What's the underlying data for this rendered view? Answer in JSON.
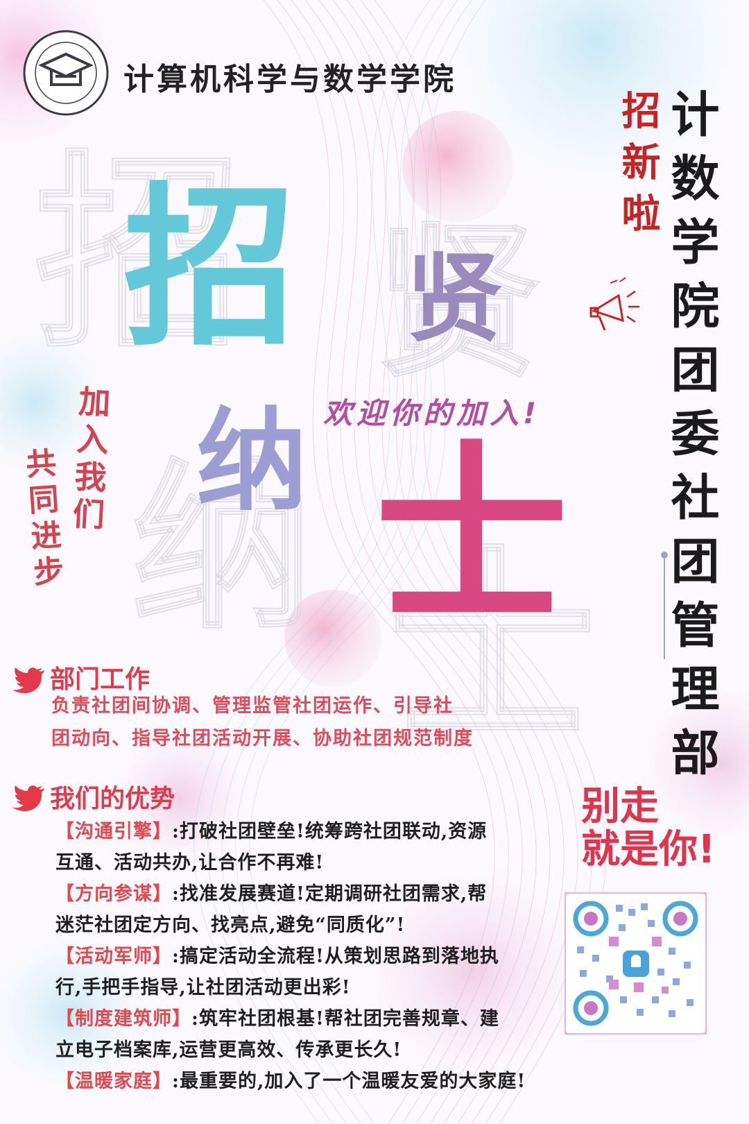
{
  "header": {
    "school_name": "计算机科学与数学学院",
    "seal_text": "计算机科学与数学学院"
  },
  "vertical_title": "计数学院团委社团管理部",
  "recruit_tag": "招新啦",
  "big_chars": {
    "zhao": "招",
    "xian": "贤",
    "na": "纳",
    "shi": "士"
  },
  "welcome": "欢迎你的加入!",
  "slogans": {
    "join": "加入我们",
    "progress": "共同进步"
  },
  "work": {
    "title": "部门工作",
    "lines": [
      "负责社团间协调、管理监管社团运作、引导社",
      "团动向、指导社团活动开展、协助社团规范制度"
    ]
  },
  "advantages": {
    "title": "我们的优势",
    "items": [
      {
        "tag": "【沟通引擎】",
        "line1": ":打破社团壁垒!统筹跨社团联动,资源",
        "line2": "互通、活动共办,让合作不再难!"
      },
      {
        "tag": "【方向参谋】",
        "line1": ":找准发展赛道!定期调研社团需求,帮",
        "line2": "迷茫社团定方向、找亮点,避免“同质化”!"
      },
      {
        "tag": "【活动军师】",
        "line1": ":搞定活动全流程!从策划思路到落地执",
        "line2": "行,手把手指导,让社团活动更出彩!"
      },
      {
        "tag": "【制度建筑师】",
        "line1": ":筑牢社团根基!帮社团完善规章、建",
        "line2": "立电子档案库,运营更高效、传承更长久!"
      },
      {
        "tag": "【温暖家庭】",
        "line1": ":最重要的,加入了一个温暖友爱的大家庭!",
        "line2": ""
      }
    ]
  },
  "callout": {
    "line1": "别走",
    "line2": "就是你!"
  },
  "icons": {
    "section": "bird-icon",
    "megaphone": "megaphone-icon",
    "logo": "cap-logo-icon",
    "qr": "qr-code-icon"
  },
  "colors": {
    "red": "#c52424",
    "pink": "#e23a4a",
    "cyan": "#63c9d9",
    "magenta": "#d8487f"
  }
}
